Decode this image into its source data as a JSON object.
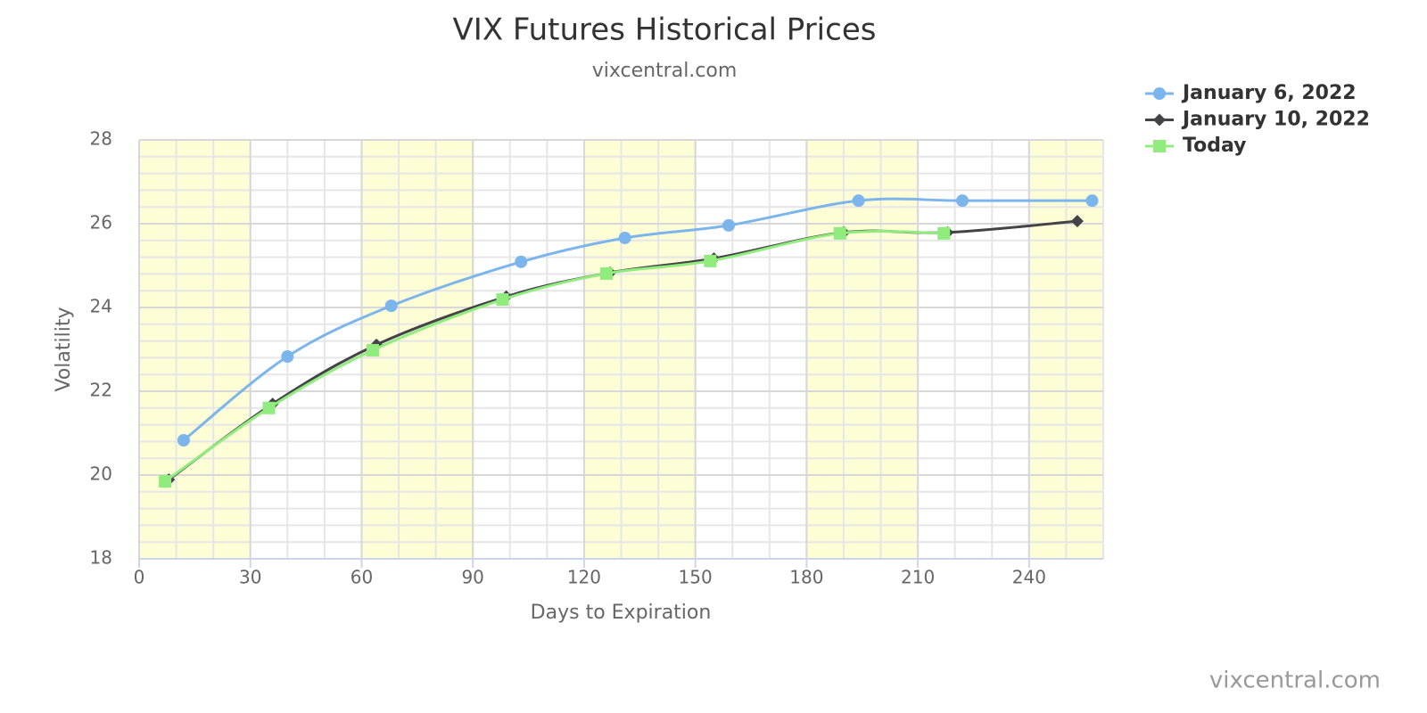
{
  "chart_data": {
    "type": "line",
    "title": "VIX Futures Historical Prices",
    "subtitle": "vixcentral.com",
    "credit": "vixcentral.com",
    "x_label": "Days to Expiration",
    "y_label": "Volatility",
    "xlim": [
      0,
      260
    ],
    "xticks": [
      0,
      30,
      60,
      90,
      120,
      150,
      180,
      210,
      240
    ],
    "ylim": [
      18,
      28
    ],
    "yticks": [
      18,
      20,
      22,
      24,
      26,
      28
    ],
    "grid": true,
    "x_minor_step": 10,
    "y_minor_step": 0.4,
    "bands": [
      [
        0,
        30
      ],
      [
        60,
        90
      ],
      [
        120,
        150
      ],
      [
        180,
        210
      ],
      [
        240,
        260
      ]
    ],
    "band_color": "#fdfdd6",
    "legend": "top-right",
    "series": [
      {
        "name": "January 6, 2022",
        "color": "#7cb5ec",
        "marker": "circle",
        "x": [
          12,
          40,
          68,
          103,
          131,
          159,
          194,
          222,
          257
        ],
        "values": [
          20.83,
          22.83,
          24.04,
          25.09,
          25.66,
          25.96,
          26.55,
          26.55,
          26.55
        ]
      },
      {
        "name": "January 10, 2022",
        "color": "#434348",
        "marker": "diamond",
        "x": [
          8,
          36,
          64,
          99,
          127,
          155,
          190,
          218,
          253
        ],
        "values": [
          19.89,
          21.7,
          23.11,
          24.26,
          24.83,
          25.17,
          25.79,
          25.79,
          26.06
        ]
      },
      {
        "name": "Today",
        "color": "#90ed7d",
        "marker": "square",
        "x": [
          7,
          35,
          63,
          98,
          126,
          154,
          189,
          217
        ],
        "values": [
          19.85,
          21.6,
          22.98,
          24.19,
          24.81,
          25.11,
          25.77,
          25.77
        ]
      }
    ]
  }
}
